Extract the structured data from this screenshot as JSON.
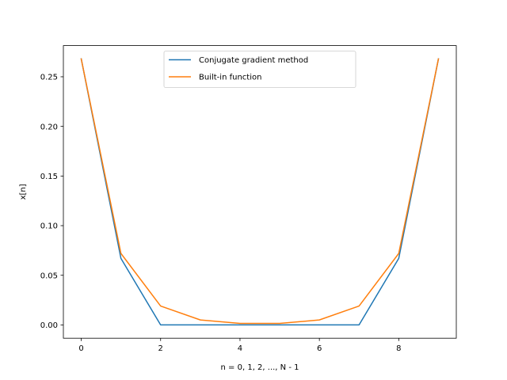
{
  "chart_data": {
    "type": "line",
    "title": "",
    "xlabel": "n = 0, 1, 2, ..., N - 1",
    "ylabel": "x[n]",
    "xlim": [
      -0.45,
      9.45
    ],
    "ylim": [
      -0.0134,
      0.2814
    ],
    "xticks": [
      0,
      2,
      4,
      6,
      8
    ],
    "yticks": [
      0.0,
      0.05,
      0.1,
      0.15,
      0.2,
      0.25
    ],
    "xtick_labels": [
      "0",
      "2",
      "4",
      "6",
      "8"
    ],
    "ytick_labels": [
      "0.00",
      "0.05",
      "0.10",
      "0.15",
      "0.20",
      "0.25"
    ],
    "grid": false,
    "legend_position": "upper-center",
    "x": [
      0,
      1,
      2,
      3,
      4,
      5,
      6,
      7,
      8,
      9
    ],
    "series": [
      {
        "name": "Conjugate gradient method",
        "color": "#1f77b4",
        "values": [
          0.268,
          0.067,
          0.0,
          0.0,
          0.0,
          0.0,
          0.0,
          0.0,
          0.067,
          0.268
        ]
      },
      {
        "name": "Built-in function",
        "color": "#ff7f0e",
        "values": [
          0.268,
          0.072,
          0.019,
          0.005,
          0.0015,
          0.0015,
          0.005,
          0.019,
          0.072,
          0.268
        ]
      }
    ]
  }
}
